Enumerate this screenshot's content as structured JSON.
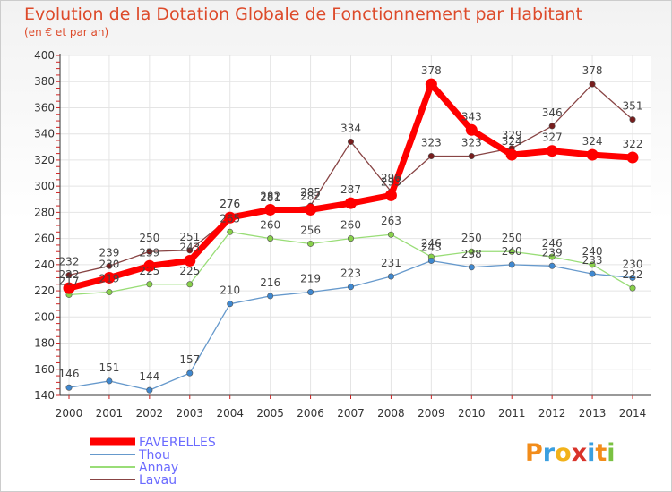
{
  "header": {
    "title": "Evolution de la Dotation Globale de Fonctionnement par Habitant",
    "subtitle": "(en € et par an)"
  },
  "logo": {
    "text": "Proxiti"
  },
  "chart_data": {
    "type": "line",
    "x": [
      "2000",
      "2001",
      "2002",
      "2003",
      "2004",
      "2005",
      "2006",
      "2007",
      "2008",
      "2009",
      "2010",
      "2011",
      "2012",
      "2013",
      "2014"
    ],
    "ylim": [
      140,
      400
    ],
    "yticks": [
      140,
      160,
      180,
      200,
      220,
      240,
      260,
      280,
      300,
      320,
      340,
      360,
      380,
      400
    ],
    "grid": true,
    "legend_position": "bottom-left",
    "series": [
      {
        "name": "FAVERELLES",
        "color": "#ff0000",
        "dot": "#ff0000",
        "values": [
          222,
          230,
          239,
          243,
          276,
          282,
          282,
          287,
          293,
          378,
          343,
          324,
          327,
          324,
          322
        ]
      },
      {
        "name": "Thou",
        "color": "#6699cc",
        "dot": "#3f88d0",
        "values": [
          146,
          151,
          144,
          157,
          210,
          216,
          219,
          223,
          231,
          243,
          238,
          240,
          239,
          233,
          230
        ]
      },
      {
        "name": "Annay",
        "color": "#99dd77",
        "dot": "#88d04a",
        "values": [
          217,
          219,
          225,
          225,
          265,
          260,
          256,
          260,
          263,
          246,
          250,
          250,
          246,
          240,
          222
        ]
      },
      {
        "name": "Lavau",
        "color": "#884444",
        "dot": "#771d1d",
        "values": [
          232,
          239,
          250,
          251,
          276,
          281,
          285,
          334,
          296,
          323,
          323,
          329,
          346,
          378,
          351
        ]
      }
    ],
    "labels": [
      {
        "series": 0,
        "text": [
          "222",
          "230",
          "239",
          "243",
          "276",
          "282",
          "282",
          "287",
          "293",
          "378",
          "343",
          "324",
          "327",
          "324",
          "322"
        ]
      },
      {
        "series": 1,
        "text": [
          "146",
          "151",
          "144",
          "157",
          "210",
          "216",
          "219",
          "223",
          "231",
          "243",
          "238",
          "240",
          "239",
          "233",
          "230"
        ]
      },
      {
        "series": 2,
        "text": [
          "217",
          "219",
          "225",
          "225",
          "265",
          "260",
          "256",
          "260",
          "263",
          "246",
          "250",
          "250",
          "246",
          "240",
          "222"
        ]
      },
      {
        "series": 3,
        "text": [
          "232",
          "239",
          "250",
          "251",
          "276",
          "281",
          "285",
          "334",
          "296",
          "323",
          "323",
          "329",
          "346",
          "378",
          "351"
        ]
      }
    ]
  }
}
